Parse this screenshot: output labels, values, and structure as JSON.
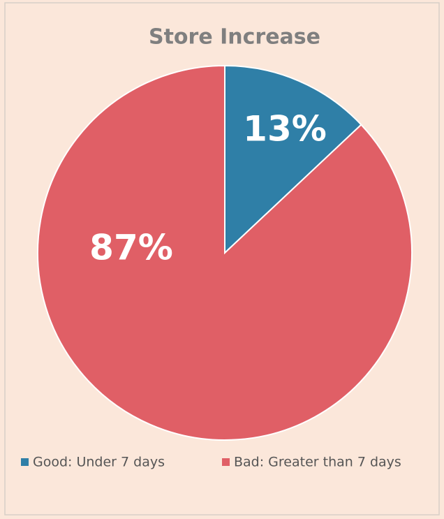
{
  "chart_data": {
    "type": "pie",
    "title": "Store Increase",
    "categories": [
      "Good: Under 7 days",
      "Bad: Greater than 7 days"
    ],
    "values": [
      13,
      87
    ],
    "value_labels": [
      "13%",
      "87%"
    ],
    "colors": [
      "#2f7fa7",
      "#e05f66"
    ],
    "legend": "bottom"
  }
}
